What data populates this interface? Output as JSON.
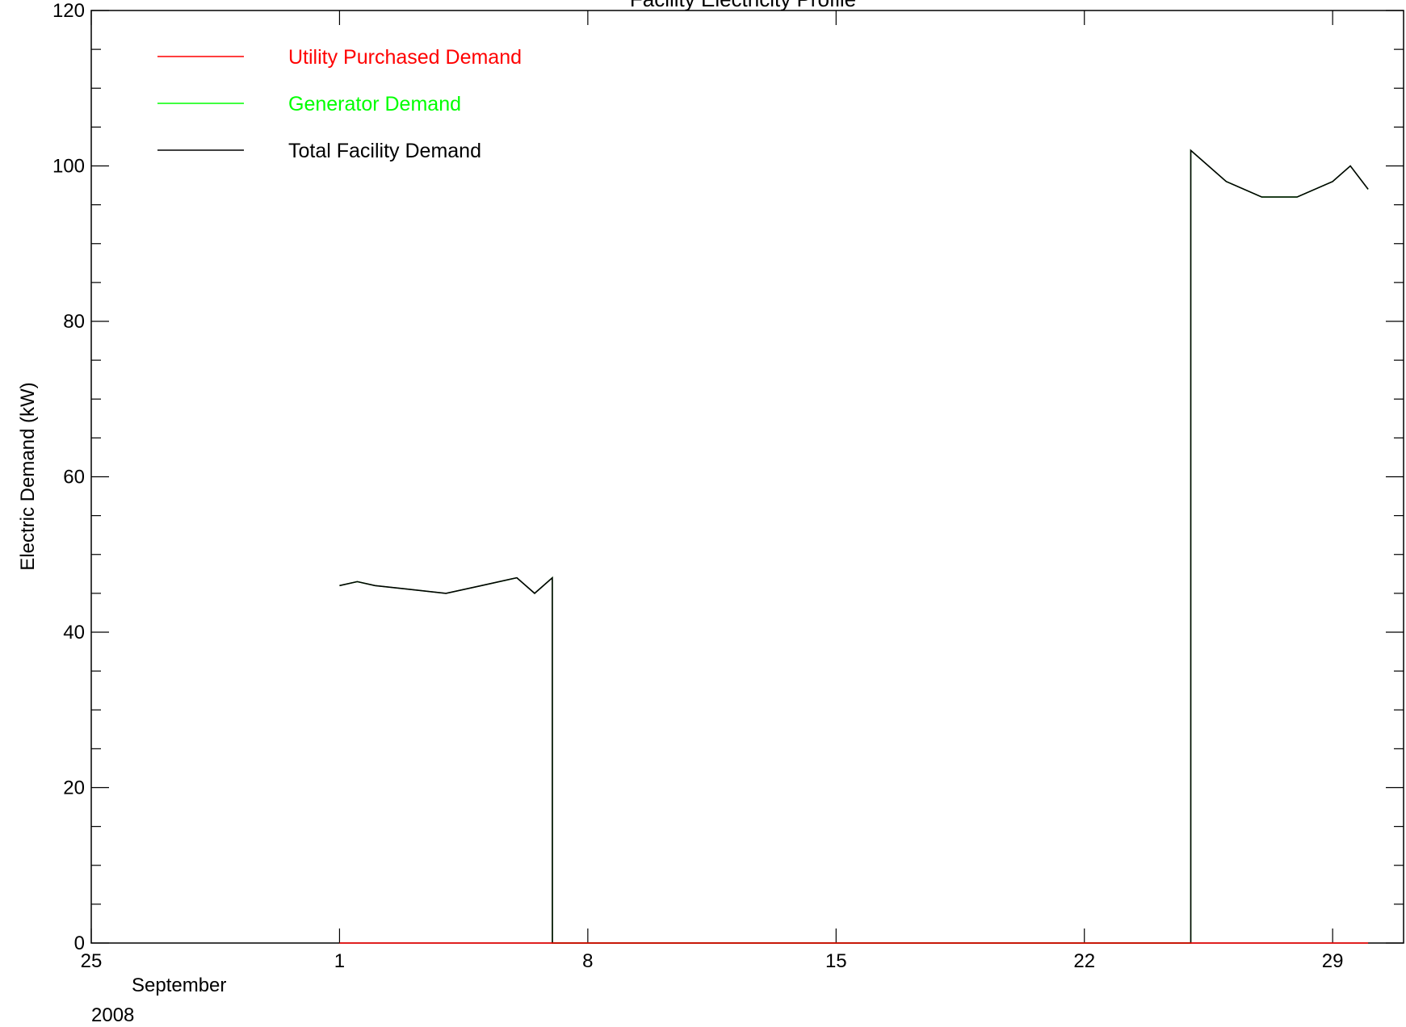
{
  "chart_data": {
    "type": "line",
    "title": "Facility Electricity Profile",
    "ylabel": "Electric Demand (kW)",
    "xlabel": "",
    "xlim": [
      "2008-08-25",
      "2008-10-01"
    ],
    "ylim": [
      0,
      120
    ],
    "y_ticks": [
      0,
      20,
      40,
      60,
      80,
      100,
      120
    ],
    "x_ticks": [
      {
        "date": "2008-08-25",
        "label": "25"
      },
      {
        "date": "2008-09-01",
        "label": "1"
      },
      {
        "date": "2008-09-08",
        "label": "8"
      },
      {
        "date": "2008-09-15",
        "label": "15"
      },
      {
        "date": "2008-09-22",
        "label": "22"
      },
      {
        "date": "2008-09-29",
        "label": "29"
      }
    ],
    "x_sublabels": {
      "month": "September",
      "year": "2008"
    },
    "grid": false,
    "legend_position": "top-left",
    "series": [
      {
        "name": "Utility Purchased Demand",
        "color": "#ff0000",
        "points": [
          [
            "2008-09-01",
            0
          ],
          [
            "2008-09-07",
            0
          ],
          [
            "2008-09-25",
            0
          ],
          [
            "2008-09-30",
            0
          ]
        ]
      },
      {
        "name": "Generator Demand",
        "color": "#00ff00",
        "points": [
          [
            "2008-09-01",
            46
          ],
          [
            "2008-09-01T12:00",
            46.5
          ],
          [
            "2008-09-02",
            46
          ],
          [
            "2008-09-03",
            45.5
          ],
          [
            "2008-09-04",
            45
          ],
          [
            "2008-09-05",
            46
          ],
          [
            "2008-09-06",
            47
          ],
          [
            "2008-09-06T12:00",
            45
          ],
          [
            "2008-09-07",
            47
          ],
          [
            "2008-09-07T00:01",
            0
          ],
          [
            "2008-09-25",
            0
          ],
          [
            "2008-09-25T00:01",
            102
          ],
          [
            "2008-09-25T12:00",
            100
          ],
          [
            "2008-09-26",
            98
          ],
          [
            "2008-09-27",
            96
          ],
          [
            "2008-09-28",
            96
          ],
          [
            "2008-09-29",
            98
          ],
          [
            "2008-09-29T12:00",
            100
          ],
          [
            "2008-09-30",
            97
          ]
        ]
      },
      {
        "name": "Total Facility Demand",
        "color": "#000000",
        "points": [
          [
            "2008-09-01",
            46
          ],
          [
            "2008-09-01T12:00",
            46.5
          ],
          [
            "2008-09-02",
            46
          ],
          [
            "2008-09-03",
            45.5
          ],
          [
            "2008-09-04",
            45
          ],
          [
            "2008-09-05",
            46
          ],
          [
            "2008-09-06",
            47
          ],
          [
            "2008-09-06T12:00",
            45
          ],
          [
            "2008-09-07",
            47
          ],
          [
            "2008-09-07T00:01",
            0
          ],
          [
            "2008-09-25",
            0
          ],
          [
            "2008-09-25T00:01",
            102
          ],
          [
            "2008-09-25T12:00",
            100
          ],
          [
            "2008-09-26",
            98
          ],
          [
            "2008-09-27",
            96
          ],
          [
            "2008-09-28",
            96
          ],
          [
            "2008-09-29",
            98
          ],
          [
            "2008-09-29T12:00",
            100
          ],
          [
            "2008-09-30",
            97
          ]
        ]
      }
    ]
  }
}
